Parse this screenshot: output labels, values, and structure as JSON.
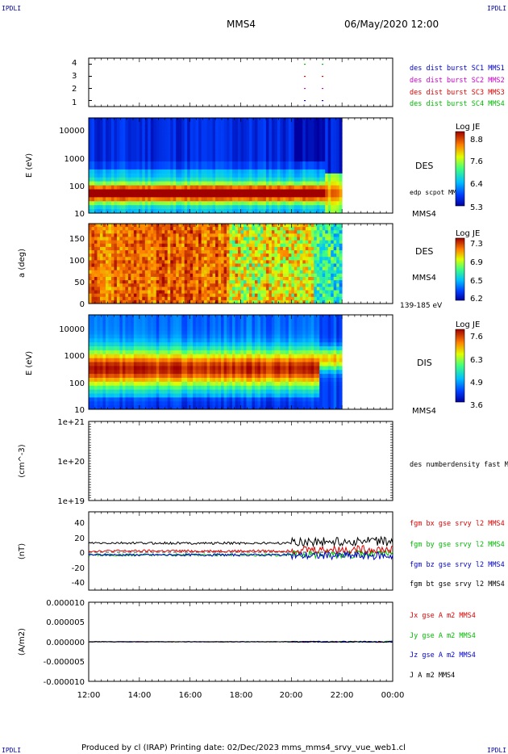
{
  "header": {
    "corner_label": "IPDLI",
    "spacecraft": "MMS4",
    "datetime": "06/May/2020 12:00"
  },
  "footer": {
    "text": "Produced by cl (IRAP)   Printing date: 02/Dec/2023   mms_mms4_srvy_vue_web1.cl"
  },
  "time_axis": {
    "ticks": [
      "12:00",
      "14:00",
      "16:00",
      "18:00",
      "20:00",
      "22:00",
      "00:00"
    ],
    "start_hour": 12,
    "end_hour": 24
  },
  "chart_data": [
    {
      "type": "scatter",
      "panel": "burst-availability",
      "ylim": [
        0.5,
        4.5
      ],
      "yticks": [
        "4",
        "3",
        "2",
        "1"
      ],
      "series": [
        {
          "name": "des dist burst SC1 MMS1",
          "color": "#0000cc",
          "y": 1,
          "x_hours": [
            20.5,
            21.2
          ]
        },
        {
          "name": "des dist burst SC2 MMS2",
          "color": "#cc00cc",
          "y": 2,
          "x_hours": [
            20.5,
            21.2
          ]
        },
        {
          "name": "des dist burst SC3 MMS3",
          "color": "#dd0000",
          "y": 3,
          "x_hours": [
            20.5,
            21.2
          ]
        },
        {
          "name": "des dist burst SC4 MMS4",
          "color": "#00bb00",
          "y": 4,
          "x_hours": [
            20.5,
            21.2
          ]
        }
      ]
    },
    {
      "type": "heatmap",
      "panel": "des-energy",
      "ylabel": "E (eV)",
      "yticks": [
        "10000",
        "1000",
        "100",
        "10"
      ],
      "ylim_log": [
        10,
        30000
      ],
      "data_end_hour": 22.0,
      "label": "DES",
      "side_text": "edp scpot MMS4",
      "bottom_text": "MMS4",
      "colorbar": {
        "title": "Log JE",
        "ticks": [
          "8.8",
          "7.6",
          "6.4",
          "5.3"
        ],
        "range": [
          5.3,
          8.8
        ]
      }
    },
    {
      "type": "heatmap",
      "panel": "des-pitch",
      "ylabel": "a (deg)",
      "yticks": [
        "150",
        "100",
        "50",
        "0"
      ],
      "ylim": [
        0,
        180
      ],
      "data_end_hour": 22.0,
      "label": "DES",
      "side_text": "MMS4",
      "bottom_text": "139-185 eV",
      "colorbar": {
        "title": "Log JE",
        "ticks": [
          "7.3",
          "6.9",
          "6.5",
          "6.2"
        ],
        "range": [
          6.2,
          7.3
        ]
      }
    },
    {
      "type": "heatmap",
      "panel": "dis-energy",
      "ylabel": "E (eV)",
      "yticks": [
        "10000",
        "1000",
        "100",
        "10"
      ],
      "ylim_log": [
        10,
        20000
      ],
      "data_end_hour": 22.0,
      "label": "DIS",
      "bottom_text": "MMS4",
      "colorbar": {
        "title": "Log JE",
        "ticks": [
          "7.6",
          "6.3",
          "4.9",
          "3.6"
        ],
        "range": [
          3.6,
          7.6
        ]
      }
    },
    {
      "type": "line",
      "panel": "density",
      "ylabel": "(cm^-3)",
      "yticks": [
        "1e+21",
        "1e+20",
        "1e+19"
      ],
      "series": [
        {
          "name": "des numberdensity fast M",
          "values": []
        }
      ]
    },
    {
      "type": "line",
      "panel": "magnetic-field",
      "ylabel": "(nT)",
      "yticks": [
        "40",
        "20",
        "0",
        "-20",
        "-40"
      ],
      "ylim": [
        -50,
        50
      ],
      "series": [
        {
          "name": "fgm bx gse srvy l2 MMS4",
          "color": "#dd0000",
          "mean_before_20h": 0,
          "mean_after_20h": 2
        },
        {
          "name": "fgm by gse srvy l2 MMS4",
          "color": "#00bb00",
          "mean_before_20h": -5,
          "mean_after_20h": -4
        },
        {
          "name": "fgm bz gse srvy l2 MMS4",
          "color": "#0000cc",
          "mean_before_20h": -5,
          "mean_after_20h": -6
        },
        {
          "name": "fgm bt gse srvy l2 MMS4",
          "color": "#000000",
          "mean_before_20h": 10,
          "mean_after_20h": 12
        }
      ]
    },
    {
      "type": "line",
      "panel": "current-density",
      "ylabel": "(A/m2)",
      "yticks": [
        "0.000010",
        "0.000005",
        "0.000000",
        "-0.000005",
        "-0.000010"
      ],
      "ylim": [
        -1e-05,
        1e-05
      ],
      "series": [
        {
          "name": "Jx gse A m2 MMS4",
          "color": "#dd0000"
        },
        {
          "name": "Jy gse A m2 MMS4",
          "color": "#00bb00"
        },
        {
          "name": "Jz gse A m2 MMS4",
          "color": "#0000cc"
        },
        {
          "name": "J A m2 MMS4",
          "color": "#000000"
        }
      ]
    }
  ]
}
